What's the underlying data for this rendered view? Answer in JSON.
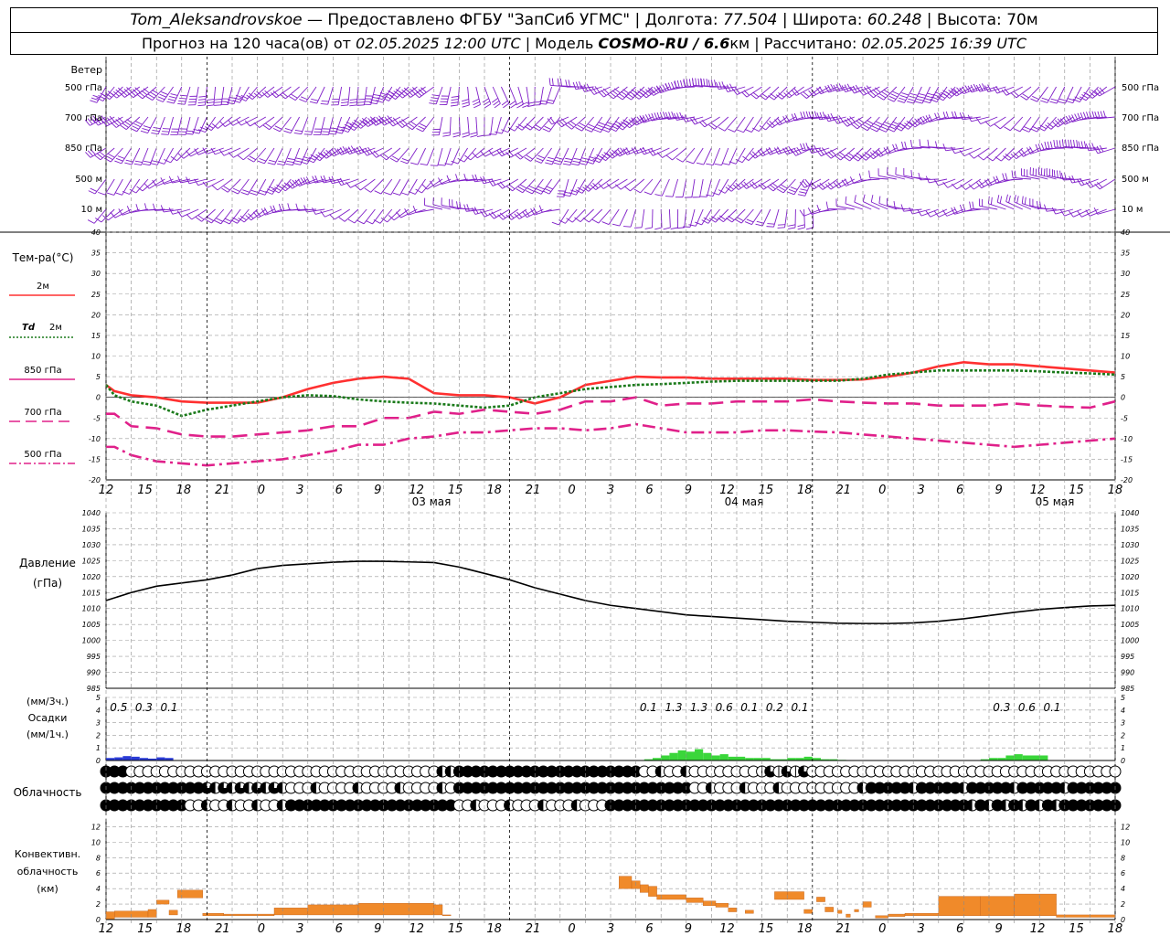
{
  "header": {
    "station": "Tom_Aleksandrovskoe",
    "provider": "— Предоставлено ФГБУ \"ЗапСиб УГМС\"",
    "lon_label": "Долгота:",
    "lon": "77.504",
    "lat_label": "Широта:",
    "lat": "60.248",
    "alt_label": "Высота:",
    "alt": "70м",
    "forecast_label": "Прогноз на 120 часа(ов) от",
    "init_time": "02.05.2025 12:00 UTC",
    "model_label": "Модель",
    "model": "COSMO-RU / 6.6",
    "model_unit": "км",
    "calc_label": "Рассчитано:",
    "calc_time": "02.05.2025 16:39 UTC"
  },
  "labels": {
    "wind": "Ветер",
    "wind_levels": [
      "500 гПа",
      "700 гПа",
      "850 гПа",
      "500 м",
      "10 м"
    ],
    "temp_title": "Тем-ра(°С)",
    "t2m": "2м",
    "td_a": "Td",
    "td_b": "2м",
    "t850": "850 гПа",
    "t700": "700 гПа",
    "t500": "500 гПа",
    "pressure_a": "Давление",
    "pressure_b": "(гПа)",
    "precip_a": "(мм/3ч.)",
    "precip_b": "Осадки",
    "precip_c": "(мм/1ч.)",
    "cloud": "Облачность",
    "conv_a": "Конвективн.",
    "conv_b": "облачность",
    "conv_c": "(км)"
  },
  "chart_data": [
    {
      "type": "wind-barbs",
      "levels": [
        "500 гПа",
        "700 гПа",
        "850 гПа",
        "500 м",
        "10 м"
      ],
      "x_hours_from_start": [
        0,
        120
      ],
      "colors": {
        "barb": "#7f1ec8"
      }
    },
    {
      "type": "line",
      "ylabel": "Тем-ра(°С)",
      "ylim": [
        -20,
        40
      ],
      "yticks": [
        -20,
        -15,
        -10,
        -5,
        0,
        5,
        10,
        15,
        20,
        25,
        30,
        35,
        40
      ],
      "x_ticks": [
        "12",
        "15",
        "18",
        "21",
        "0",
        "3",
        "6",
        "9",
        "12",
        "15",
        "18",
        "21",
        "0",
        "3",
        "6",
        "9",
        "12",
        "15",
        "18",
        "21",
        "0",
        "3",
        "6",
        "9",
        "12",
        "15",
        "18"
      ],
      "days": [
        "03 мая",
        "04 мая",
        "05 мая"
      ],
      "series": [
        {
          "name": "2м",
          "color": "#ff3030",
          "dash": "solid",
          "x": [
            0,
            1,
            3,
            6,
            9,
            12,
            15,
            18,
            21,
            24,
            27,
            30,
            33,
            36,
            39,
            42,
            45,
            48,
            51,
            54,
            57,
            60,
            63,
            66,
            69,
            72,
            75,
            78,
            81,
            84,
            87,
            90,
            93,
            96,
            99,
            102,
            105,
            108,
            111,
            114,
            117,
            120
          ],
          "y": [
            3,
            1.5,
            0.5,
            0,
            -1,
            -1.3,
            -1.3,
            -1.3,
            0,
            2,
            3.5,
            4.5,
            5,
            4.5,
            1,
            0.5,
            0.5,
            0,
            -1.5,
            0,
            3,
            4,
            5,
            4.8,
            4.8,
            4.5,
            4.5,
            4.5,
            4.5,
            4.2,
            4.2,
            4.3,
            5,
            6,
            7.5,
            8.5,
            8,
            8,
            7.5,
            7,
            6.5,
            6
          ]
        },
        {
          "name": "Td 2м",
          "color": "#1a7a1a",
          "dash": "dot",
          "x": [
            0,
            1,
            3,
            6,
            9,
            12,
            15,
            18,
            21,
            24,
            27,
            30,
            33,
            36,
            39,
            42,
            45,
            48,
            51,
            54,
            57,
            60,
            63,
            66,
            69,
            72,
            75,
            78,
            81,
            84,
            87,
            90,
            93,
            96,
            99,
            102,
            105,
            108,
            111,
            114,
            117,
            120
          ],
          "y": [
            3,
            0.5,
            -1,
            -2,
            -4.5,
            -3,
            -2,
            -1,
            0,
            0.5,
            0.3,
            -0.5,
            -1,
            -1.3,
            -1.5,
            -2,
            -2.5,
            -2,
            0,
            1,
            2,
            2.5,
            3,
            3.2,
            3.5,
            3.8,
            4,
            4,
            4,
            4,
            4,
            4.5,
            5.5,
            6,
            6.5,
            6.5,
            6.5,
            6.5,
            6.3,
            6,
            5.8,
            5.5
          ]
        },
        {
          "name": "850 гПа",
          "color": "#e0208a",
          "dash": "long-dash",
          "x": [
            0,
            1,
            3,
            6,
            9,
            12,
            15,
            18,
            21,
            24,
            27,
            30,
            33,
            36,
            39,
            42,
            45,
            48,
            51,
            54,
            57,
            60,
            63,
            66,
            69,
            72,
            75,
            78,
            81,
            84,
            87,
            90,
            93,
            96,
            99,
            102,
            105,
            108,
            111,
            114,
            117,
            120
          ],
          "y": [
            -4,
            -4,
            -7,
            -7.5,
            -9,
            -9.5,
            -9.5,
            -9,
            -8.5,
            -8,
            -7,
            -7,
            -5,
            -5,
            -3.5,
            -4,
            -3,
            -3.5,
            -4,
            -3,
            -1,
            -1,
            0,
            -2,
            -1.5,
            -1.5,
            -1,
            -1,
            -1,
            -0.5,
            -1,
            -1.3,
            -1.5,
            -1.5,
            -2,
            -2,
            -2,
            -1.5,
            -2,
            -2.3,
            -2.5,
            -1
          ]
        },
        {
          "name": "700 гПа",
          "color": "#e0208a",
          "dash": "dash-dot",
          "x": [
            0,
            1,
            3,
            6,
            9,
            12,
            15,
            18,
            21,
            24,
            27,
            30,
            33,
            36,
            39,
            42,
            45,
            48,
            51,
            54,
            57,
            60,
            63,
            66,
            69,
            72,
            75,
            78,
            81,
            84,
            87,
            90,
            93,
            96,
            99,
            102,
            105,
            108,
            111,
            114,
            117,
            120
          ],
          "y": [
            -12,
            -12,
            -14,
            -15.5,
            -16,
            -16.5,
            -16,
            -15.5,
            -15,
            -14,
            -13,
            -11.5,
            -11.5,
            -10,
            -9.5,
            -8.5,
            -8.5,
            -8,
            -7.5,
            -7.5,
            -8,
            -7.5,
            -6.5,
            -7.5,
            -8.5,
            -8.5,
            -8.5,
            -8,
            -8,
            -8.3,
            -8.5,
            -9,
            -9.5,
            -10,
            -10.5,
            -11,
            -11.5,
            -12,
            -11.5,
            -11,
            -10.5,
            -10
          ]
        }
      ]
    },
    {
      "type": "line",
      "ylabel": "Давление (гПа)",
      "ylim": [
        985,
        1040
      ],
      "yticks": [
        985,
        990,
        995,
        1000,
        1005,
        1010,
        1015,
        1020,
        1025,
        1030,
        1035,
        1040
      ],
      "series": [
        {
          "name": "Давление",
          "color": "#000000",
          "x": [
            0,
            3,
            6,
            9,
            12,
            15,
            18,
            21,
            24,
            27,
            30,
            33,
            36,
            39,
            42,
            45,
            48,
            51,
            54,
            57,
            60,
            63,
            66,
            69,
            72,
            75,
            78,
            81,
            84,
            87,
            90,
            93,
            96,
            99,
            102,
            105,
            108,
            111,
            114,
            117,
            120
          ],
          "y": [
            1012.5,
            1015,
            1017,
            1018,
            1019,
            1020.5,
            1022.5,
            1023.5,
            1024,
            1024.5,
            1024.8,
            1024.8,
            1024.6,
            1024.4,
            1023,
            1021,
            1019,
            1016.5,
            1014.5,
            1012.5,
            1011,
            1010,
            1009,
            1008,
            1007.5,
            1007,
            1006.5,
            1006,
            1005.7,
            1005.4,
            1005.3,
            1005.3,
            1005.5,
            1006,
            1006.8,
            1007.8,
            1008.8,
            1009.7,
            1010.3,
            1010.8,
            1011
          ]
        }
      ]
    },
    {
      "type": "bar",
      "ylabel": "Осадки (мм/1ч.)",
      "ylim": [
        0,
        5
      ],
      "yticks": [
        0,
        1,
        2,
        3,
        4,
        5
      ],
      "totals_3h": [
        {
          "x": 1.5,
          "label": "0.5"
        },
        {
          "x": 4.5,
          "label": "0.3"
        },
        {
          "x": 7.5,
          "label": "0.1"
        },
        {
          "x": 64.5,
          "label": "0.1"
        },
        {
          "x": 67.5,
          "label": "1.3"
        },
        {
          "x": 70.5,
          "label": "1.3"
        },
        {
          "x": 73.5,
          "label": "0.6"
        },
        {
          "x": 76.5,
          "label": "0.1"
        },
        {
          "x": 79.5,
          "label": "0.2"
        },
        {
          "x": 82.5,
          "label": "0.1"
        },
        {
          "x": 106.5,
          "label": "0.3"
        },
        {
          "x": 109.5,
          "label": "0.6"
        },
        {
          "x": 112.5,
          "label": "0.1"
        }
      ],
      "series": [
        {
          "name": "snow",
          "color": "#2a3bd6",
          "x": [
            0,
            1,
            2,
            3,
            4,
            5,
            6,
            7
          ],
          "y": [
            0.2,
            0.25,
            0.35,
            0.3,
            0.2,
            0.15,
            0.25,
            0.2
          ]
        },
        {
          "name": "rain",
          "color": "#3ad63a",
          "x": [
            64,
            65,
            66,
            67,
            68,
            69,
            70,
            71,
            72,
            73,
            74,
            75,
            76,
            77,
            78,
            79,
            80,
            81,
            82,
            83,
            84,
            85,
            86,
            87,
            104,
            105,
            106,
            107,
            108,
            109,
            110,
            111
          ],
          "y": [
            0.1,
            0.2,
            0.4,
            0.6,
            0.8,
            0.7,
            0.9,
            0.6,
            0.4,
            0.5,
            0.3,
            0.3,
            0.2,
            0.2,
            0.2,
            0.1,
            0.1,
            0.2,
            0.2,
            0.3,
            0.2,
            0.1,
            0.1,
            0.05,
            0.1,
            0.2,
            0.2,
            0.4,
            0.5,
            0.4,
            0.4,
            0.4
          ]
        }
      ]
    },
    {
      "type": "cloud-cover",
      "rows": [
        "high",
        "middle",
        "low"
      ],
      "x_hours_from_start": [
        0,
        120
      ],
      "colors": {
        "circle": "#000000"
      }
    },
    {
      "type": "bar",
      "ylabel": "Конвективн. облачность (км)",
      "ylim": [
        0,
        13
      ],
      "yticks": [
        0,
        2,
        4,
        6,
        8,
        10,
        12
      ],
      "series": [
        {
          "name": "Конвективная облачность",
          "color": "#f08a2a",
          "bars": [
            {
              "x0": 0,
              "x1": 1,
              "base": 0,
              "top": 1.0
            },
            {
              "x0": 1,
              "x1": 5,
              "base": 0.3,
              "top": 1.1
            },
            {
              "x0": 5,
              "x1": 6,
              "base": 0.3,
              "top": 1.3
            },
            {
              "x0": 6,
              "x1": 7.5,
              "base": 2.0,
              "top": 2.5
            },
            {
              "x0": 7.5,
              "x1": 8.5,
              "base": 0.6,
              "top": 1.2
            },
            {
              "x0": 8.5,
              "x1": 11.5,
              "base": 2.8,
              "top": 3.8
            },
            {
              "x0": 11.5,
              "x1": 14,
              "base": 0.5,
              "top": 0.8
            },
            {
              "x0": 14,
              "x1": 20,
              "base": 0.5,
              "top": 0.7
            },
            {
              "x0": 20,
              "x1": 24,
              "base": 0.6,
              "top": 1.5
            },
            {
              "x0": 24,
              "x1": 30,
              "base": 0.6,
              "top": 1.9
            },
            {
              "x0": 30,
              "x1": 39,
              "base": 0.6,
              "top": 2.1
            },
            {
              "x0": 39,
              "x1": 40,
              "base": 0.6,
              "top": 1.9
            },
            {
              "x0": 40,
              "x1": 41,
              "base": 0.5,
              "top": 0.6
            },
            {
              "x0": 61,
              "x1": 62.5,
              "base": 4.0,
              "top": 5.6
            },
            {
              "x0": 62.5,
              "x1": 63.5,
              "base": 4.0,
              "top": 5.0
            },
            {
              "x0": 63.5,
              "x1": 64.5,
              "base": 3.5,
              "top": 4.5
            },
            {
              "x0": 64.5,
              "x1": 65.5,
              "base": 3.0,
              "top": 4.3
            },
            {
              "x0": 65.5,
              "x1": 69,
              "base": 2.6,
              "top": 3.2
            },
            {
              "x0": 69,
              "x1": 71,
              "base": 2.2,
              "top": 2.8
            },
            {
              "x0": 71,
              "x1": 72.5,
              "base": 1.8,
              "top": 2.4
            },
            {
              "x0": 72.5,
              "x1": 74,
              "base": 1.6,
              "top": 2.1
            },
            {
              "x0": 74,
              "x1": 75,
              "base": 1.0,
              "top": 1.5
            },
            {
              "x0": 76,
              "x1": 77,
              "base": 0.8,
              "top": 1.2
            },
            {
              "x0": 79.5,
              "x1": 81,
              "base": 2.6,
              "top": 3.6
            },
            {
              "x0": 81,
              "x1": 83,
              "base": 2.6,
              "top": 3.6
            },
            {
              "x0": 83,
              "x1": 84,
              "base": 0.8,
              "top": 1.3
            },
            {
              "x0": 84.5,
              "x1": 85.5,
              "base": 2.3,
              "top": 2.9
            },
            {
              "x0": 85.5,
              "x1": 86.5,
              "base": 1.0,
              "top": 1.6
            },
            {
              "x0": 87,
              "x1": 87.5,
              "base": 0.8,
              "top": 1.2
            },
            {
              "x0": 88,
              "x1": 88.5,
              "base": 0.3,
              "top": 0.7
            },
            {
              "x0": 89,
              "x1": 89.5,
              "base": 1.0,
              "top": 1.3
            },
            {
              "x0": 90,
              "x1": 91,
              "base": 1.6,
              "top": 2.3
            },
            {
              "x0": 91.5,
              "x1": 93,
              "base": 0.2,
              "top": 0.5
            },
            {
              "x0": 93,
              "x1": 95,
              "base": 0.4,
              "top": 0.7
            },
            {
              "x0": 95,
              "x1": 99,
              "base": 0.5,
              "top": 0.8
            },
            {
              "x0": 99,
              "x1": 104,
              "base": 0.5,
              "top": 3.0
            },
            {
              "x0": 104,
              "x1": 108,
              "base": 0.5,
              "top": 3.0
            },
            {
              "x0": 108,
              "x1": 113,
              "base": 0.5,
              "top": 3.3
            },
            {
              "x0": 113,
              "x1": 120,
              "base": 0.3,
              "top": 0.6
            }
          ]
        }
      ]
    }
  ]
}
